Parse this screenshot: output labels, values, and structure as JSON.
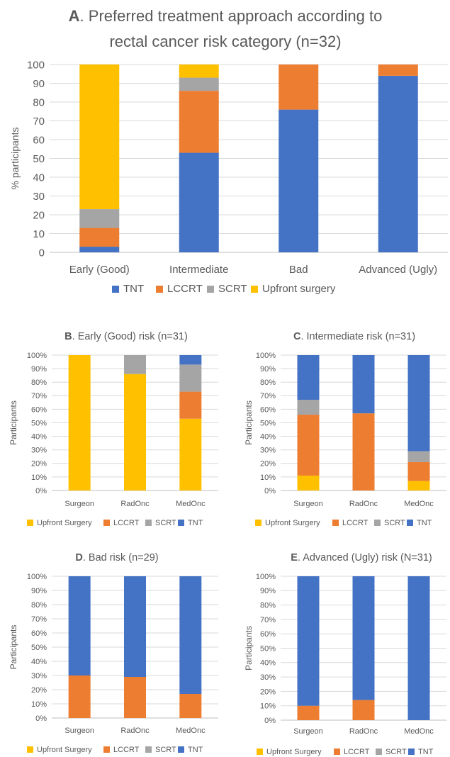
{
  "colors": {
    "TNT": "#4472C4",
    "LCCRT": "#ED7D31",
    "SCRT": "#A5A5A5",
    "Upfront": "#FFC000",
    "grid": "#D9D9D9",
    "axis": "#BFBFBF",
    "text": "#595959"
  },
  "chart_data": [
    {
      "id": "A",
      "type": "bar",
      "stacked": true,
      "title_letter": "A",
      "title_rest": ". Preferred treatment approach according to",
      "title_line2": "rectal cancer risk category (n=32)",
      "ylabel": "% participants",
      "ylim": [
        0,
        100
      ],
      "yticks": [
        "0",
        "10",
        "20",
        "30",
        "40",
        "50",
        "60",
        "70",
        "80",
        "90",
        "100"
      ],
      "categories": [
        "Early (Good)",
        "Intermediate",
        "Bad",
        "Advanced (Ugly)"
      ],
      "legend": [
        "TNT",
        "LCCRT",
        "SCRT",
        "Upfront surgery"
      ],
      "legend_keys": [
        "TNT",
        "LCCRT",
        "SCRT",
        "Upfront"
      ],
      "series": [
        {
          "name": "TNT",
          "values": [
            3,
            53,
            76,
            94
          ]
        },
        {
          "name": "LCCRT",
          "values": [
            10,
            33,
            24,
            6
          ]
        },
        {
          "name": "SCRT",
          "values": [
            10,
            7,
            0,
            0
          ]
        },
        {
          "name": "Upfront surgery",
          "values": [
            77,
            7,
            0,
            0
          ]
        }
      ]
    },
    {
      "id": "B",
      "type": "bar",
      "stacked": true,
      "title_letter": "B",
      "title_rest": ". Early (Good) risk (n=31)",
      "ylabel": "Participants",
      "ylim": [
        0,
        100
      ],
      "yticks": [
        "0%",
        "10%",
        "20%",
        "30%",
        "40%",
        "50%",
        "60%",
        "70%",
        "80%",
        "90%",
        "100%"
      ],
      "categories": [
        "Surgeon",
        "RadOnc",
        "MedOnc"
      ],
      "legend": [
        "Upfront Surgery",
        "LCCRT",
        "SCRT",
        "TNT"
      ],
      "legend_keys": [
        "Upfront",
        "LCCRT",
        "SCRT",
        "TNT"
      ],
      "series": [
        {
          "name": "Upfront Surgery",
          "values": [
            100,
            86,
            53
          ]
        },
        {
          "name": "LCCRT",
          "values": [
            0,
            0,
            20
          ]
        },
        {
          "name": "SCRT",
          "values": [
            0,
            14,
            20
          ]
        },
        {
          "name": "TNT",
          "values": [
            0,
            0,
            7
          ]
        }
      ]
    },
    {
      "id": "C",
      "type": "bar",
      "stacked": true,
      "title_letter": "C",
      "title_rest": ". Intermediate risk (n=31)",
      "ylabel": "Participants",
      "ylim": [
        0,
        100
      ],
      "yticks": [
        "0%",
        "10%",
        "20%",
        "30%",
        "40%",
        "50%",
        "60%",
        "70%",
        "80%",
        "90%",
        "100%"
      ],
      "categories": [
        "Surgeon",
        "RadOnc",
        "MedOnc"
      ],
      "legend": [
        "Upfront Surgery",
        "LCCRT",
        "SCRT",
        "TNT"
      ],
      "legend_keys": [
        "Upfront",
        "LCCRT",
        "SCRT",
        "TNT"
      ],
      "series": [
        {
          "name": "Upfront Surgery",
          "values": [
            11,
            0,
            7
          ]
        },
        {
          "name": "LCCRT",
          "values": [
            45,
            57,
            14
          ]
        },
        {
          "name": "SCRT",
          "values": [
            11,
            0,
            8
          ]
        },
        {
          "name": "TNT",
          "values": [
            33,
            43,
            71
          ]
        }
      ]
    },
    {
      "id": "D",
      "type": "bar",
      "stacked": true,
      "title_letter": "D",
      "title_rest": ". Bad risk (n=29)",
      "ylabel": "Participants",
      "ylim": [
        0,
        100
      ],
      "yticks": [
        "0%",
        "10%",
        "20%",
        "30%",
        "40%",
        "50%",
        "60%",
        "70%",
        "80%",
        "90%",
        "100%"
      ],
      "categories": [
        "Surgeon",
        "RadOnc",
        "MedOnc"
      ],
      "legend": [
        "Upfront Surgery",
        "LCCRT",
        "SCRT",
        "TNT"
      ],
      "legend_keys": [
        "Upfront",
        "LCCRT",
        "SCRT",
        "TNT"
      ],
      "series": [
        {
          "name": "Upfront Surgery",
          "values": [
            0,
            0,
            0
          ]
        },
        {
          "name": "LCCRT",
          "values": [
            30,
            29,
            17
          ]
        },
        {
          "name": "SCRT",
          "values": [
            0,
            0,
            0
          ]
        },
        {
          "name": "TNT",
          "values": [
            70,
            71,
            83
          ]
        }
      ]
    },
    {
      "id": "E",
      "type": "bar",
      "stacked": true,
      "title_letter": "E",
      "title_rest": ". Advanced (Ugly) risk (N=31)",
      "ylabel": "Participants",
      "ylim": [
        0,
        100
      ],
      "yticks": [
        "0%",
        "10%",
        "20%",
        "30%",
        "40%",
        "50%",
        "60%",
        "70%",
        "80%",
        "90%",
        "100%"
      ],
      "categories": [
        "Surgeon",
        "RadOnc",
        "MedOnc"
      ],
      "legend": [
        "Upfront Surgery",
        "LCCRT",
        "SCRT",
        "TNT"
      ],
      "legend_keys": [
        "Upfront",
        "LCCRT",
        "SCRT",
        "TNT"
      ],
      "series": [
        {
          "name": "Upfront Surgery",
          "values": [
            0,
            0,
            0
          ]
        },
        {
          "name": "LCCRT",
          "values": [
            10,
            14,
            0
          ]
        },
        {
          "name": "SCRT",
          "values": [
            0,
            0,
            0
          ]
        },
        {
          "name": "TNT",
          "values": [
            90,
            86,
            100
          ]
        }
      ]
    }
  ]
}
